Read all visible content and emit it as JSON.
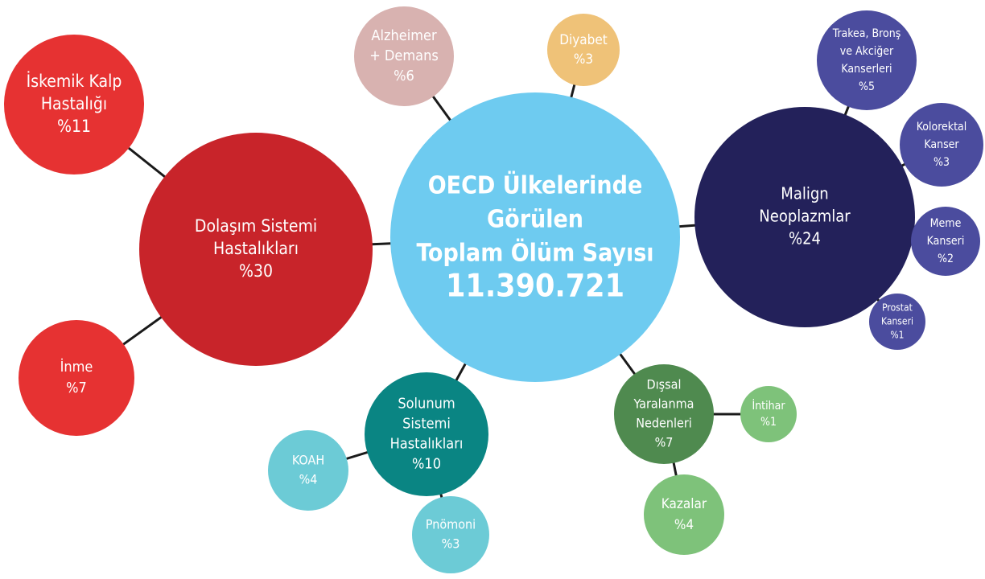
{
  "nodes": [
    {
      "lines": [
        "OECD Ülkelerinde",
        "Görülen",
        "Toplam Ölüm Sayısı",
        "11.390.721"
      ]
    },
    {
      "lines": [
        "Dolaşım Sistemi",
        "Hastalıkları",
        "%30"
      ]
    },
    {
      "lines": [
        "İskemik Kalp",
        "Hastalığı",
        "%11"
      ]
    },
    {
      "lines": [
        "İnme",
        "%7"
      ]
    },
    {
      "lines": [
        "Alzheimer",
        "+ Demans",
        "%6"
      ]
    },
    {
      "lines": [
        "Diyabet",
        "%3"
      ]
    },
    {
      "lines": [
        "Malign",
        "Neoplazmlar",
        "%24"
      ]
    },
    {
      "lines": [
        "Trakea, Bronş",
        "ve Akciğer",
        "Kanserleri",
        "%5"
      ]
    },
    {
      "lines": [
        "Kolorektal",
        "Kanser",
        "%3"
      ]
    },
    {
      "lines": [
        "Meme",
        "Kanseri",
        "%2"
      ]
    },
    {
      "lines": [
        "Prostat",
        "Kanseri",
        "%1"
      ]
    },
    {
      "lines": [
        "Solunum",
        "Sistemi",
        "Hastalıkları",
        "%10"
      ]
    },
    {
      "lines": [
        "KOAH",
        "%4"
      ]
    },
    {
      "lines": [
        "Pnömoni",
        "%3"
      ]
    },
    {
      "lines": [
        "Dışsal",
        "Yaralanma",
        "Nedenleri",
        "%7"
      ]
    },
    {
      "lines": [
        "İntihar",
        "%1"
      ]
    },
    {
      "lines": [
        "Kazalar",
        "%4"
      ]
    }
  ]
}
